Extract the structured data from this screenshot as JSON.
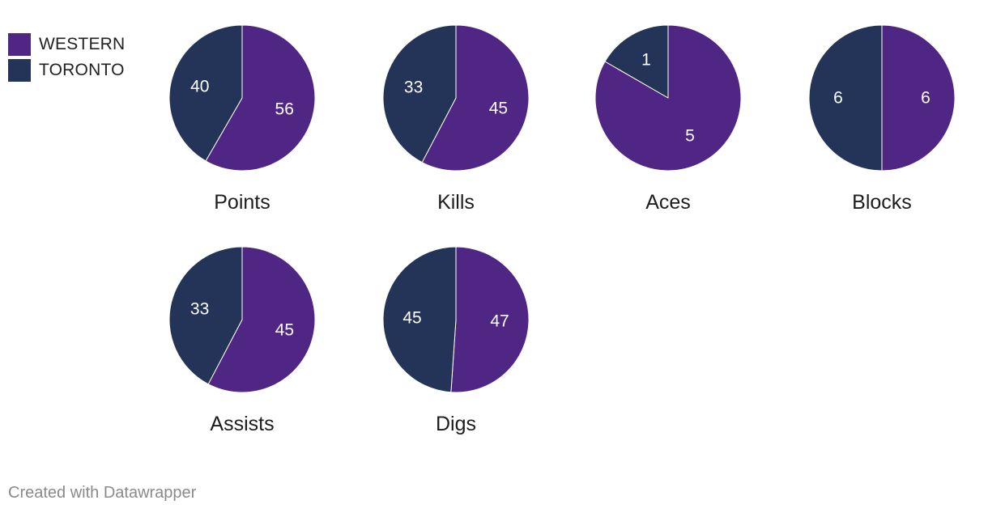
{
  "legend": [
    {
      "label": "WESTERN",
      "color": "#4f2683"
    },
    {
      "label": "TORONTO",
      "color": "#243458"
    }
  ],
  "chart_data": {
    "type": "pie",
    "series": [
      "WESTERN",
      "TORONTO"
    ],
    "colors": {
      "WESTERN": "#4f2683",
      "TORONTO": "#243458"
    },
    "legend_position": "top-left",
    "charts": [
      {
        "title": "Points",
        "values": {
          "WESTERN": 56,
          "TORONTO": 40
        }
      },
      {
        "title": "Kills",
        "values": {
          "WESTERN": 45,
          "TORONTO": 33
        }
      },
      {
        "title": "Aces",
        "values": {
          "WESTERN": 5,
          "TORONTO": 1
        }
      },
      {
        "title": "Blocks",
        "values": {
          "WESTERN": 6,
          "TORONTO": 6
        }
      },
      {
        "title": "Assists",
        "values": {
          "WESTERN": 45,
          "TORONTO": 33
        }
      },
      {
        "title": "Digs",
        "values": {
          "WESTERN": 47,
          "TORONTO": 45
        }
      }
    ]
  },
  "footer": {
    "credit": "Created with Datawrapper"
  }
}
